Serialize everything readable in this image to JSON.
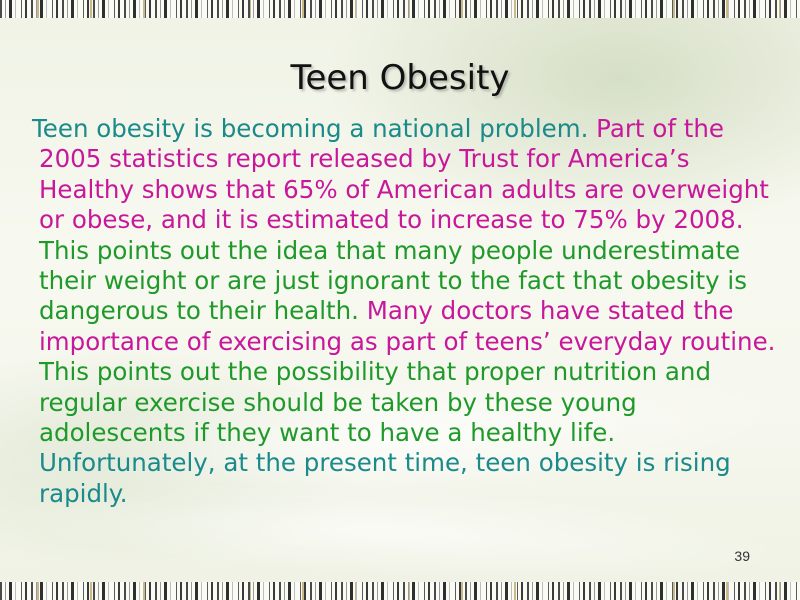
{
  "slide": {
    "title": "Teen Obesity",
    "page_number": "39",
    "colors": {
      "teal": "#1a8a8a",
      "magenta": "#c8179b",
      "green": "#1f9a2a",
      "title": "#111111"
    },
    "body_segments": [
      {
        "text": "Teen obesity is becoming a national problem. ",
        "color": "#1a8a8a"
      },
      {
        "text": "Part of the 2005 statistics report released by Trust for America’s Healthy shows that 65% of American adults are overweight or obese, and it is estimated to increase to 75% by 2008. ",
        "color": "#c8179b"
      },
      {
        "text": "This points out the idea that many people underestimate their weight or are just ignorant to the fact that obesity is dangerous to their health. ",
        "color": "#1f9a2a"
      },
      {
        "text": "Many doctors have stated the importance of exercising as part of teens’ everyday routine. ",
        "color": "#c8179b"
      },
      {
        "text": "This points out the possibility that proper nutrition and regular exercise should be taken by these young adolescents if they want to have a healthy life. ",
        "color": "#1f9a2a"
      },
      {
        "text": "Unfortunately, at the present time, teen obesity is rising rapidly.",
        "color": "#1a8a8a"
      }
    ]
  }
}
